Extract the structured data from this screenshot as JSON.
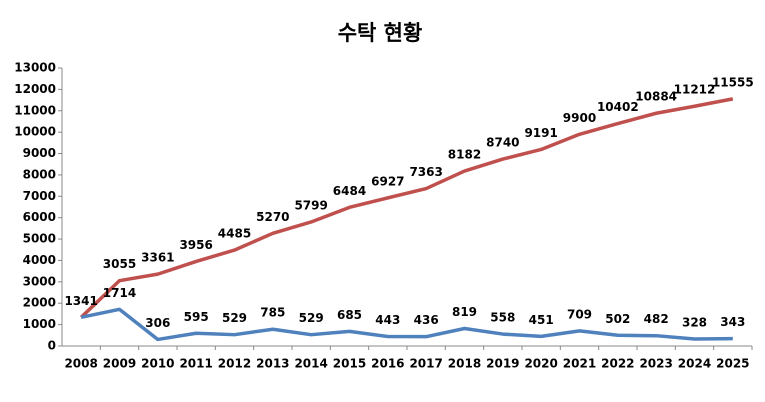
{
  "chart_data": {
    "type": "line",
    "title": "수탁 현황",
    "categories": [
      "2008",
      "2009",
      "2010",
      "2011",
      "2012",
      "2013",
      "2014",
      "2015",
      "2016",
      "2017",
      "2018",
      "2019",
      "2020",
      "2021",
      "2022",
      "2023",
      "2024",
      "2025"
    ],
    "series": [
      {
        "color": "#c0504d",
        "values": [
          1341,
          3055,
          3361,
          3956,
          4485,
          5270,
          5799,
          6484,
          6927,
          7363,
          8182,
          8740,
          9191,
          9900,
          10402,
          10884,
          11212,
          11555
        ]
      },
      {
        "color": "#4f81bd",
        "values": [
          1341,
          1714,
          306,
          595,
          529,
          785,
          529,
          685,
          443,
          436,
          819,
          558,
          451,
          709,
          502,
          482,
          328,
          343
        ]
      }
    ],
    "ylim": [
      0,
      13000
    ],
    "yticks": [
      0,
      1000,
      2000,
      3000,
      4000,
      5000,
      6000,
      7000,
      8000,
      9000,
      10000,
      11000,
      12000,
      13000
    ],
    "grid": false
  }
}
